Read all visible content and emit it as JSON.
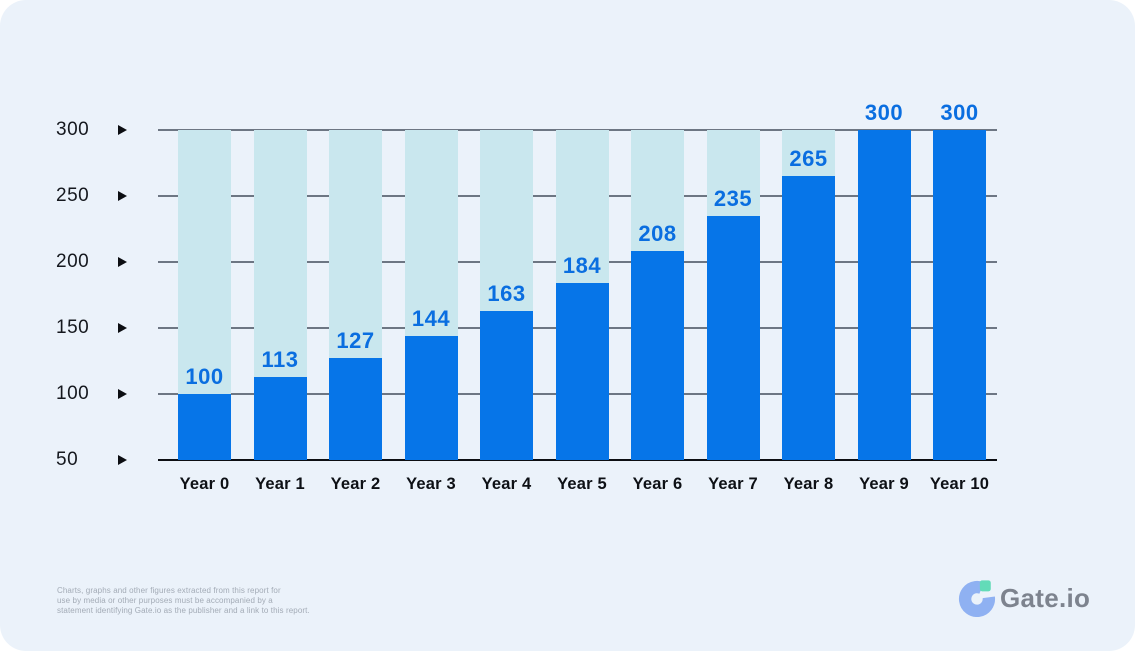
{
  "chart_data": {
    "type": "bar",
    "categories": [
      "Year 0",
      "Year 1",
      "Year 2",
      "Year 3",
      "Year 4",
      "Year 5",
      "Year 6",
      "Year 7",
      "Year 8",
      "Year 9",
      "Year 10"
    ],
    "values": [
      100,
      113,
      127,
      144,
      163,
      184,
      208,
      235,
      265,
      300,
      300
    ],
    "title": "",
    "xlabel": "",
    "ylabel": "",
    "ylim": [
      50,
      300
    ],
    "yticks": [
      300,
      250,
      200,
      150,
      100,
      50
    ],
    "grid": true,
    "legend": false,
    "bar_color": "#0675e8",
    "track_color": "#c9e7ee",
    "value_label_color": "#0a6ee0"
  },
  "footer": {
    "disclaimer_lines": [
      "Charts, graphs and other figures extracted from this report for",
      "use by media or other purposes must be accompanied by a",
      "statement identifying Gate.io as the publisher and a link to this report."
    ],
    "brand": "Gate.io"
  },
  "colors": {
    "card_background": "#ebf2fa",
    "gridline": "#6d7683",
    "axis": "#0c0e12",
    "brand_text": "#7d838e",
    "brand_mark_blue": "#8fb1f2",
    "brand_mark_mint": "#63dbb8"
  }
}
